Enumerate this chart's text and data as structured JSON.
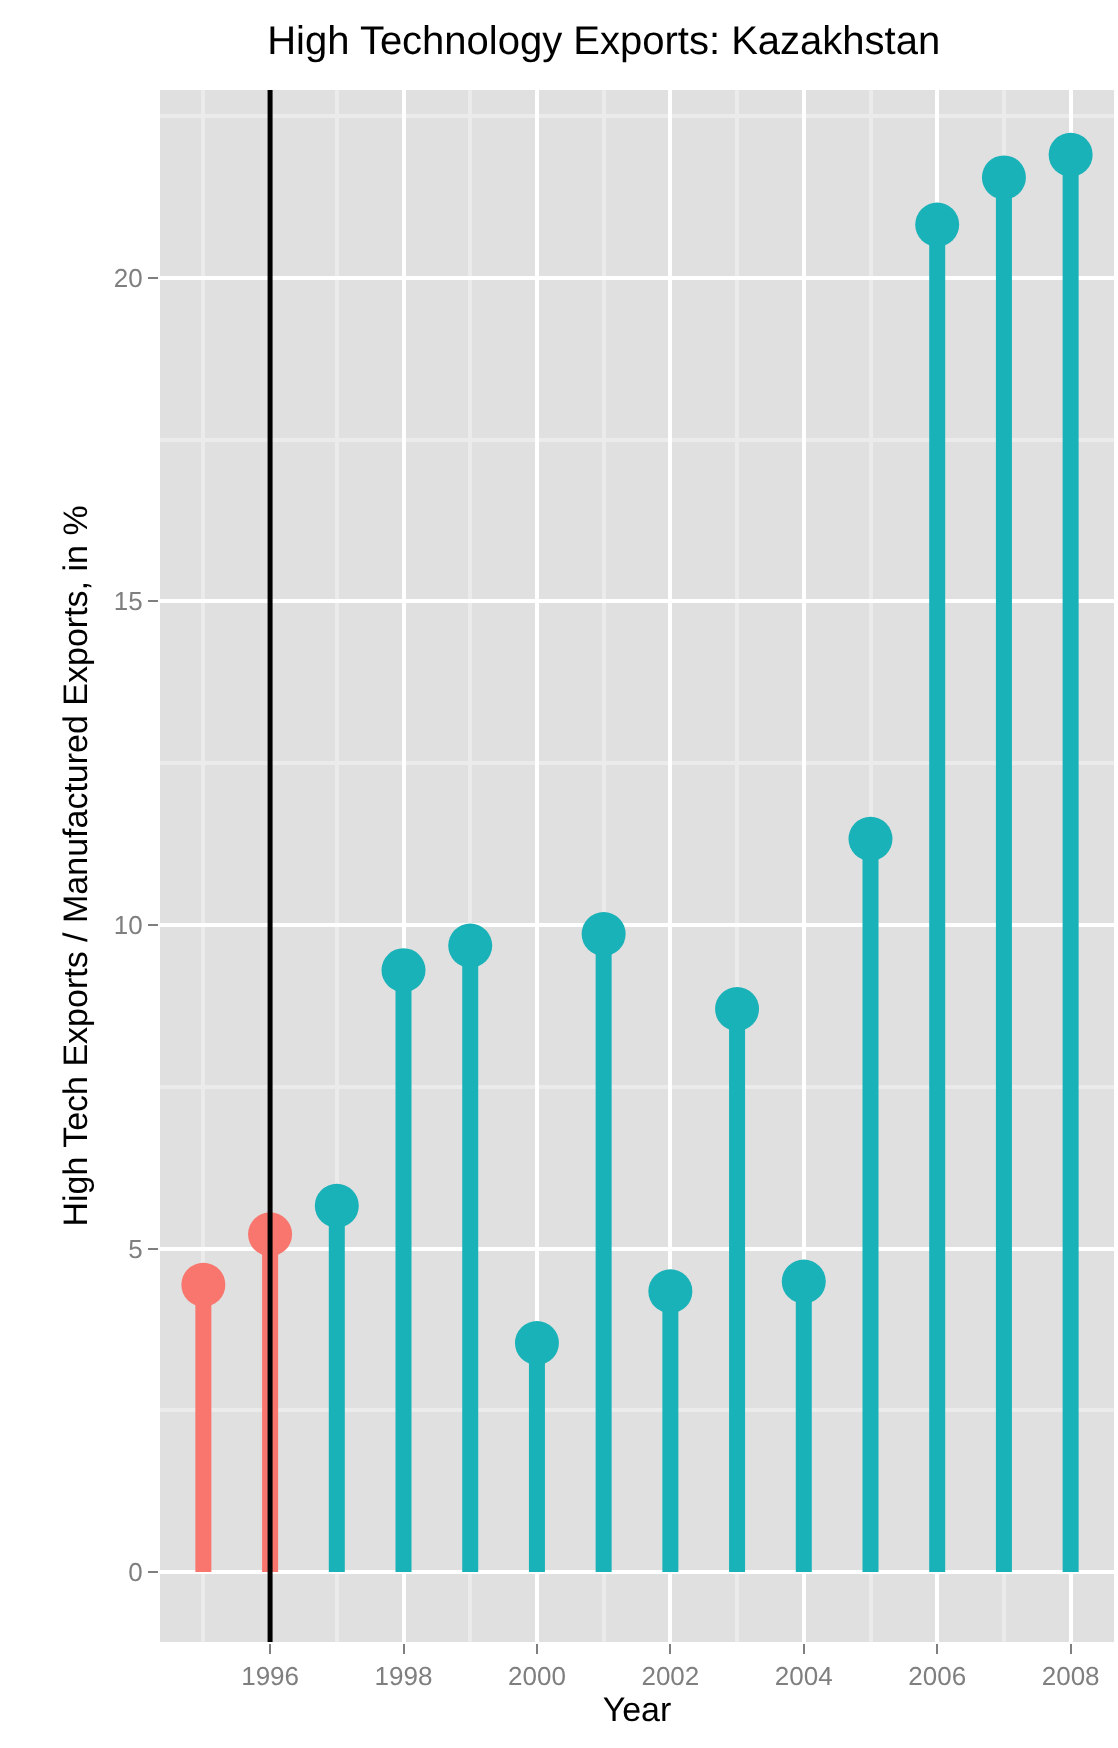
{
  "chart_data": {
    "type": "lollipop",
    "title": "High Technology Exports: Kazakhstan",
    "xlabel": "Year",
    "ylabel": "High Tech Exports / Manufactured Exports, in %",
    "x": [
      1995,
      1996,
      1997,
      1998,
      1999,
      2000,
      2001,
      2002,
      2003,
      2004,
      2005,
      2006,
      2007,
      2008
    ],
    "values": [
      4.44,
      5.22,
      5.66,
      9.3,
      9.68,
      3.54,
      9.86,
      4.34,
      8.7,
      4.49,
      11.33,
      20.82,
      21.55,
      21.9
    ],
    "colors": [
      "#f8766d",
      "#f8766d",
      "#19b2b8",
      "#19b2b8",
      "#19b2b8",
      "#19b2b8",
      "#19b2b8",
      "#19b2b8",
      "#19b2b8",
      "#19b2b8",
      "#19b2b8",
      "#19b2b8",
      "#19b2b8",
      "#19b2b8"
    ],
    "xlim": [
      1994.35,
      2008.65
    ],
    "xticks": [
      1996,
      1998,
      2000,
      2002,
      2004,
      2006,
      2008
    ],
    "ylim": [
      -1.08,
      22.9
    ],
    "yticks": [
      0,
      5,
      10,
      15,
      20
    ],
    "ref_lines": [
      {
        "axis": "x",
        "value": 1996,
        "color": "#000000"
      }
    ],
    "grid": true,
    "marker": "circle"
  }
}
